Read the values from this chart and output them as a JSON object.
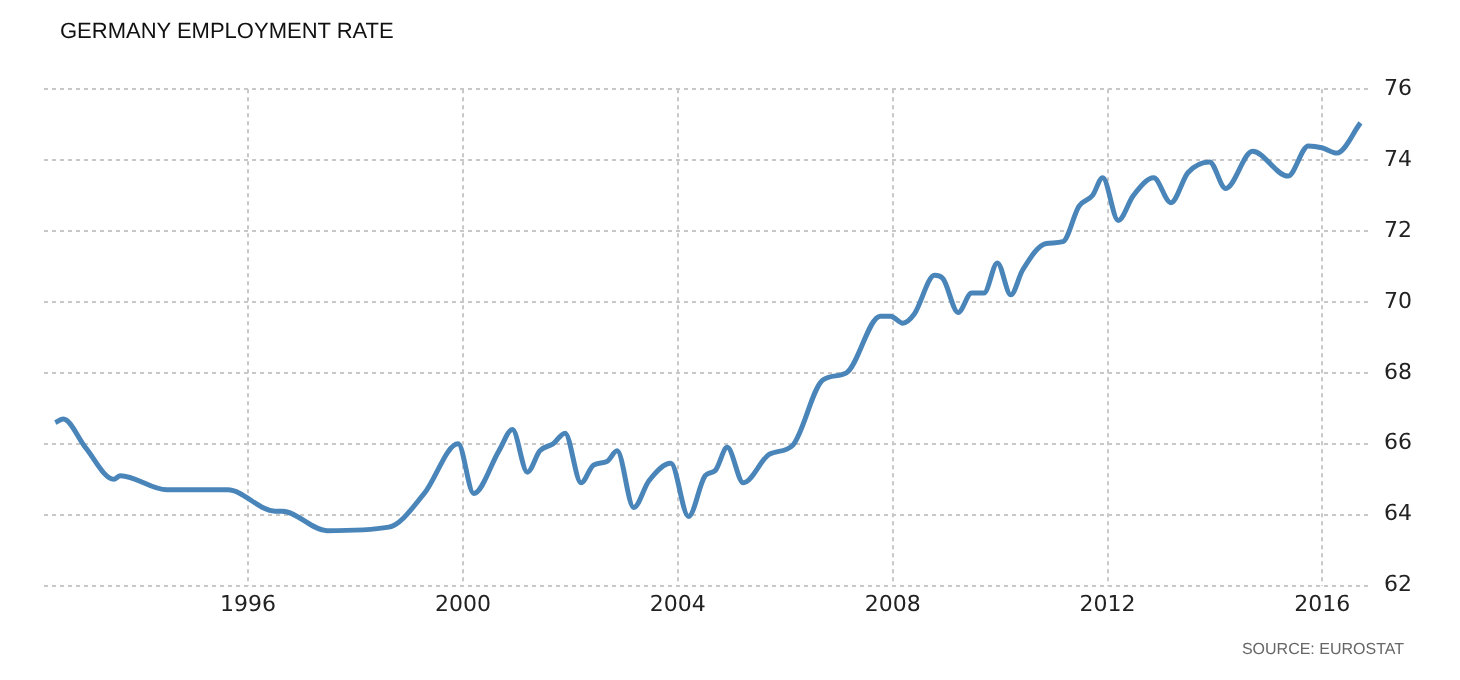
{
  "chart_data": {
    "type": "line",
    "title": "GERMANY EMPLOYMENT RATE",
    "annotations": [
      "SOURCE: EUROSTAT"
    ],
    "x": [
      1992.41,
      1992.56,
      1992.97,
      1993.5,
      1993.62,
      1994.49,
      1995.62,
      1996.5,
      1996.63,
      1997.47,
      1998.62,
      1999.28,
      1999.91,
      2000.2,
      2000.67,
      2000.92,
      2001.2,
      2001.43,
      2001.68,
      2001.9,
      2002.2,
      2002.43,
      2002.68,
      2002.87,
      2003.18,
      2003.46,
      2003.87,
      2004.2,
      2004.51,
      2004.7,
      2004.92,
      2005.22,
      2005.7,
      2006.14,
      2006.7,
      2007.14,
      2007.77,
      2007.96,
      2008.19,
      2008.4,
      2008.78,
      2008.94,
      2009.22,
      2009.47,
      2009.7,
      2009.95,
      2010.2,
      2010.42,
      2010.86,
      2011.17,
      2011.47,
      2011.72,
      2011.91,
      2012.2,
      2012.48,
      2012.86,
      2013.18,
      2013.5,
      2013.9,
      2014.2,
      2014.7,
      2015.36,
      2015.74,
      2015.99,
      2016.27,
      2016.71
    ],
    "series": [
      {
        "color": "#4a85ba",
        "values": [
          66.6,
          66.7,
          65.9,
          65.0,
          65.1,
          64.7,
          64.7,
          64.1,
          64.1,
          63.55,
          63.65,
          64.6,
          66.0,
          64.6,
          65.8,
          66.4,
          65.2,
          65.8,
          66.0,
          66.3,
          64.9,
          65.4,
          65.5,
          65.8,
          64.2,
          64.95,
          65.45,
          63.95,
          65.1,
          65.25,
          65.9,
          64.9,
          65.7,
          65.96,
          67.8,
          68.0,
          69.6,
          69.6,
          69.4,
          69.65,
          70.75,
          70.65,
          69.7,
          70.25,
          70.25,
          71.1,
          70.2,
          70.9,
          71.65,
          71.7,
          72.7,
          73.0,
          73.5,
          72.3,
          73.0,
          73.5,
          72.8,
          73.65,
          73.95,
          73.2,
          74.25,
          73.55,
          74.4,
          74.35,
          74.2,
          75.05
        ]
      }
    ],
    "xlim": [
      1992.2,
      2016.85
    ],
    "xticks": [
      1996,
      2000,
      2004,
      2008,
      2012,
      2016
    ],
    "ylim": [
      62,
      76
    ],
    "yticks": [
      62,
      64,
      66,
      68,
      70,
      72,
      74,
      76
    ],
    "grid": true,
    "legend": false,
    "marker": "none",
    "line_style": "solid"
  }
}
